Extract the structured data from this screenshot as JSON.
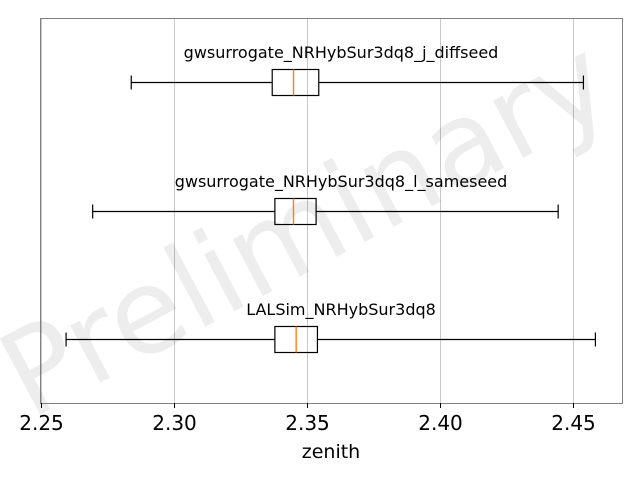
{
  "chart_data": {
    "type": "boxplot",
    "orientation": "horizontal",
    "xlabel": "zenith",
    "xlim": [
      2.2497,
      2.4685
    ],
    "xticks": [
      2.25,
      2.3,
      2.35,
      2.4,
      2.45
    ],
    "xtick_labels": [
      "2.25",
      "2.30",
      "2.35",
      "2.40",
      "2.45"
    ],
    "grid": "vertical",
    "watermark": "Preliminary",
    "colors": {
      "box": "#000000",
      "median": "#ff7f0e",
      "grid": "#c8c8c8",
      "frame": "#808080"
    },
    "boxes": [
      {
        "label": "gwsurrogate_NRHybSur3dq8_j_diffseed",
        "whisker_low": 2.284,
        "q1": 2.337,
        "median": 2.345,
        "q3": 2.3545,
        "whisker_high": 2.454
      },
      {
        "label": "gwsurrogate_NRHybSur3dq8_l_sameseed",
        "whisker_low": 2.2695,
        "q1": 2.338,
        "median": 2.345,
        "q3": 2.3535,
        "whisker_high": 2.4445
      },
      {
        "label": "LALSim_NRHybSur3dq8",
        "whisker_low": 2.2595,
        "q1": 2.338,
        "median": 2.346,
        "q3": 2.354,
        "whisker_high": 2.4585
      }
    ]
  }
}
